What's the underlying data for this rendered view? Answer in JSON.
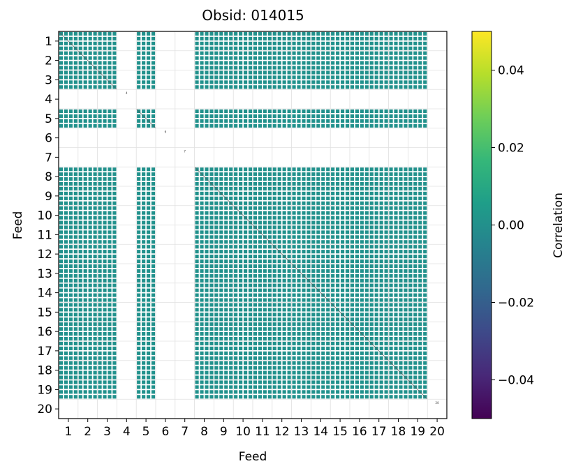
{
  "chart_data": {
    "type": "heatmap",
    "title": "Obsid: 014015",
    "xlabel": "Feed",
    "ylabel": "Feed",
    "x_tick_labels": [
      "1",
      "2",
      "3",
      "4",
      "5",
      "6",
      "7",
      "8",
      "9",
      "10",
      "11",
      "12",
      "13",
      "14",
      "15",
      "16",
      "17",
      "18",
      "19",
      "20"
    ],
    "y_tick_labels": [
      "1",
      "2",
      "3",
      "4",
      "5",
      "6",
      "7",
      "8",
      "9",
      "10",
      "11",
      "12",
      "13",
      "14",
      "15",
      "16",
      "17",
      "18",
      "19",
      "20"
    ],
    "active_feeds": [
      1,
      2,
      3,
      5,
      8,
      9,
      10,
      11,
      12,
      13,
      14,
      15,
      16,
      17,
      18,
      19
    ],
    "inactive_feeds": [
      4,
      6,
      7,
      20
    ],
    "cell_value": 0.0,
    "grid": true,
    "colorbar": {
      "label": "Correlation",
      "vmin": -0.05,
      "vmax": 0.05,
      "ticks": [
        -0.04,
        -0.02,
        0.0,
        0.02,
        0.04
      ],
      "tick_labels": [
        "−0.04",
        "−0.02",
        "0.00",
        "0.02",
        "0.04"
      ],
      "colormap": "viridis",
      "colors": [
        "#440154",
        "#482878",
        "#3e4989",
        "#31688e",
        "#26828e",
        "#1f9e89",
        "#35b779",
        "#6ece58",
        "#b5de2b",
        "#fde725"
      ]
    },
    "cell_color": "#21918c"
  }
}
